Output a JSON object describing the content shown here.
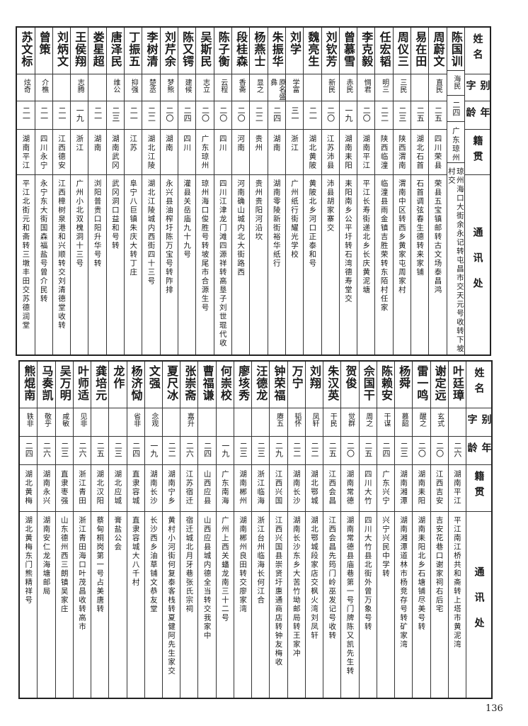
{
  "headers": {
    "name": "姓名",
    "alias": "别字",
    "age": "年龄",
    "origin": "籍贯",
    "address": "通讯处"
  },
  "tables": [
    {
      "rows": [
        {
          "name": "陈国训",
          "alias": "海民",
          "age": "二四",
          "origin": "广东琼州",
          "address": "琼州海口大街余永记转屯昌市交天元号收转下坡村交"
        },
        {
          "name": "周蔚文",
          "alias": "直民",
          "age": "二五",
          "origin": "四川荣县",
          "address": "荣县五宝镇邮转古文场泰昌鸿"
        },
        {
          "name": "易在田",
          "alias": "",
          "age": "二五",
          "origin": "湖北石首",
          "address": "石首调弦春生德转来家铺"
        },
        {
          "name": "周仪三",
          "alias": "三民",
          "age": "二三",
          "origin": "陕西渭南",
          "address": "渭南中区转西乡黄家屯周家村"
        },
        {
          "name": "任宏韬",
          "alias": "明三",
          "age": "二二",
          "origin": "陕西临潼",
          "address": "临潼县雨金镇吉胜荣转东陌村任家"
        },
        {
          "name": "李克毅",
          "alias": "惆君",
          "age": "二〇",
          "origin": "湖南平江",
          "address": "平江长寿街递北乡长庆黄泥塘"
        },
        {
          "name": "曾慕雪",
          "alias": "赤民",
          "age": "一九",
          "origin": "湖南耒阳",
          "address": "耒阳南乡公平圩转石湾德寿堂交"
        },
        {
          "name": "刘钦芳",
          "alias": "新民",
          "age": "二〇",
          "origin": "江苏沛县",
          "address": "沛县胡家寨交"
        },
        {
          "name": "魏亮生",
          "alias": "",
          "age": "二一",
          "origin": "湖北黄陂",
          "address": "黄陂北乡河口正泰和号"
        },
        {
          "name": "刘学",
          "alias": "学富",
          "age": "三一",
          "origin": "浙江",
          "address": "广州纸行街耀光学校"
        },
        {
          "name": "朱振华",
          "alias": "原名盛彝",
          "age": "二四",
          "origin": "湖南",
          "address": "湖南零陵新街裕华纸行"
        },
        {
          "name": "杨燕士",
          "alias": "显之",
          "age": "二二",
          "origin": "贵州",
          "address": "贵州贵阳河沿坎"
        },
        {
          "name": "段桂森",
          "alias": "香斋",
          "age": "二〇",
          "origin": "河南",
          "address": "河南确山城内北大街路西"
        },
        {
          "name": "陈子衡",
          "alias": "云程",
          "age": "二〇",
          "origin": "四川",
          "address": "四川江津龙门滩四源祥转高垦子刘世琨代收"
        },
        {
          "name": "吴斯民",
          "alias": "志立",
          "age": "二〇",
          "origin": "广东琼州",
          "address": "琼州海口俊胜号转坡尾市合源生号"
        },
        {
          "name": "陈又锷",
          "alias": "建候",
          "age": "二四",
          "origin": "四川",
          "address": "灌县关岳庙九十九号"
        },
        {
          "name": "刘芹余",
          "alias": "梦熊",
          "age": "二〇",
          "origin": "湖南",
          "address": "永兴县油榨圩陈万宝号转阼排"
        },
        {
          "name": "李树清",
          "alias": "楚丞",
          "age": "二二",
          "origin": "湖北江陵",
          "address": "湖北江陵城内西街四十三号"
        },
        {
          "name": "丁振五",
          "alias": "抑强",
          "age": "二一",
          "origin": "江苏",
          "address": "阜宁八巨镇朱庆大转丁庄"
        },
        {
          "name": "唐泽民",
          "alias": "维公",
          "age": "二三",
          "origin": "湖南武冈",
          "address": "武冈洞口益和号转"
        },
        {
          "name": "娄星超",
          "alias": "",
          "age": "二一",
          "origin": "湖南",
          "address": "浏阳普贵口阳升华号转"
        },
        {
          "name": "王侯翔",
          "alias": "志腾",
          "age": "一九",
          "origin": "浙江",
          "address": "广州小北双槐洞十三号"
        },
        {
          "name": "刘炳文",
          "alias": "",
          "age": "二一",
          "origin": "江西德安",
          "address": "江西樟树泉港和兴顺转交刘清德堂收转"
        },
        {
          "name": "曾策",
          "alias": "介樵",
          "age": "二一",
          "origin": "四川永宁",
          "address": "永宁东大街国森福盐号曾介民转"
        },
        {
          "name": "苏文标",
          "alias": "炫奇",
          "age": "二一",
          "origin": "湖南平江",
          "address": "平江北街元和斋转三墩丰田交苏德润堂"
        }
      ]
    },
    {
      "rows": [
        {
          "name": "叶廷璋",
          "alias": "",
          "age": "二六",
          "origin": "湖南平江",
          "address": "平江南江桥共和斋转上塔市黄泥湾"
        },
        {
          "name": "谢定远",
          "alias": "玄式",
          "age": "二〇",
          "origin": "江西吉安",
          "address": "吉安花巷口谢家祠右后宅"
        },
        {
          "name": "雷一鸣",
          "alias": "醒之",
          "age": "二〇",
          "origin": "湖南耒阳",
          "address": "湖南耒阳北乡石塘铺尽美号转"
        },
        {
          "name": "杨舜",
          "alias": "慕韶",
          "age": "二三",
          "origin": "湖南湘潭",
          "address": "湖南湘潭道林市杨竞存号转矿家湾"
        },
        {
          "name": "陈赖安",
          "alias": "干谋",
          "age": "二四",
          "origin": "广东兴宁",
          "address": "兴宁兴民中学转"
        },
        {
          "name": "佘国干",
          "alias": "周之",
          "age": "二五",
          "origin": "四川大竹",
          "address": "四川大竹县北街外曾万象号转"
        },
        {
          "name": "贺俊",
          "alias": "觉群",
          "age": "二〇",
          "origin": "湖南常德",
          "address": "湖南常德县庙巷第一号门牌陈又凯先生转"
        },
        {
          "name": "朱汉英",
          "alias": "干民",
          "age": "二五",
          "origin": "江西会昌",
          "address": "江西会昌先筠门岭巫发记号收转"
        },
        {
          "name": "刘翔",
          "alias": "凤轩",
          "age": "二二",
          "origin": "湖北鄂城",
          "address": "湖北鄂城段家店交枫火湾刘凤轩"
        },
        {
          "name": "万宁",
          "alias": "韬怀",
          "age": "二二",
          "origin": "湖南长沙",
          "address": "湖南长沙东乡大苦竹坳邮局转王家冲"
        },
        {
          "name": "钟荣福",
          "alias": "赓五",
          "age": "二九",
          "origin": "江西兴国",
          "address": "江西兴国县崇贤圩惠通商店转钟友梅收"
        },
        {
          "name": "汪德龙",
          "alias": "",
          "age": "二三",
          "origin": "浙江临海",
          "address": "浙江台州临海长何江合"
        },
        {
          "name": "廖垓秀",
          "alias": "",
          "age": "二三",
          "origin": "湖南郴州",
          "address": "湖南郴州良田转交廖家湾"
        },
        {
          "name": "何崇校",
          "alias": "",
          "age": "一九",
          "origin": "广东南海",
          "address": "广州上西关蟠龙南三十二号"
        },
        {
          "name": "曹福谦",
          "alias": "",
          "age": "二四",
          "origin": "山西应县",
          "address": "山西应县城内德全当转交我家中"
        },
        {
          "name": "张崇斋",
          "alias": "嘉升",
          "age": "二六",
          "origin": "江苏宿迁",
          "address": "宿迁城北月牙巷张氏宗祠"
        },
        {
          "name": "夏尺冰",
          "alias": "",
          "age": "二二",
          "origin": "湖南宁乡",
          "address": "黄村小河街何复泰客栈转夏健阿先生家交"
        },
        {
          "name": "文强",
          "alias": "念观",
          "age": "一九",
          "origin": "湖南长沙",
          "address": "长沙西乡油草铺文恭友堂"
        },
        {
          "name": "杨济恸",
          "alias": "省非",
          "age": "二四",
          "origin": "直隶容城",
          "address": "直隶容城大八千村"
        },
        {
          "name": "龙作",
          "alias": "",
          "age": "二三",
          "origin": "湖北应城",
          "address": "膏盐公会"
        },
        {
          "name": "龚培元",
          "alias": "",
          "age": "二五",
          "origin": "湖北汉阳",
          "address": "蔡甸桐岗第一号占美唐转"
        },
        {
          "name": "叶师适",
          "alias": "见非",
          "age": "二六",
          "origin": "浙江青田",
          "address": "浙江青田海口叶茂昌收转高市"
        },
        {
          "name": "吴万明",
          "alias": "咸敏",
          "age": "二三",
          "origin": "直隶枣强",
          "address": "山东德州西三朗镇吴家庄"
        },
        {
          "name": "马奏凯",
          "alias": "敬乎",
          "age": "二六",
          "origin": "湖南永兴",
          "address": "湖南安仁龙海塘邮局"
        },
        {
          "name": "熊焜南",
          "alias": "轶非",
          "age": "二四",
          "origin": "湖北黄梅",
          "address": "湖北黄梅东门熊精祥号"
        }
      ]
    }
  ],
  "page_number": "136"
}
